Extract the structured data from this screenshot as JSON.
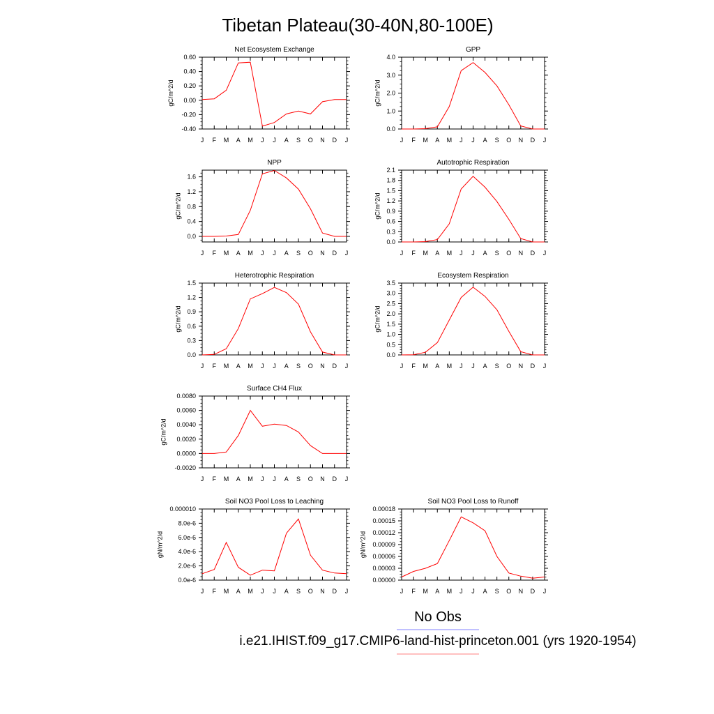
{
  "figure": {
    "title": "Tibetan Plateau(30-40N,80-100E)",
    "legend": {
      "obs_label": "No Obs",
      "obs_color": "#8080ff",
      "model_label": "i.e21.IHIST.f09_g17.CMIP6-land-hist-princeton.001 (yrs 1920-1954)",
      "model_color": "#ff8080"
    }
  },
  "chart_data": [
    {
      "type": "line",
      "title": "Net Ecosystem Exchange",
      "ylabel": "gC/m^2/d",
      "categories": [
        "J",
        "F",
        "M",
        "A",
        "M",
        "J",
        "J",
        "A",
        "S",
        "O",
        "N",
        "D",
        "J"
      ],
      "ylim": [
        -0.4,
        0.6
      ],
      "yticks": [
        -0.4,
        -0.2,
        0.0,
        0.2,
        0.4,
        0.6
      ],
      "ytick_labels": [
        "-0.40",
        "-0.20",
        "0.00",
        "0.20",
        "0.40",
        "0.60"
      ],
      "series": [
        {
          "color": "#ff0000",
          "values": [
            0.01,
            0.02,
            0.14,
            0.52,
            0.53,
            -0.36,
            -0.31,
            -0.19,
            -0.15,
            -0.19,
            -0.02,
            0.01,
            0.01
          ]
        }
      ]
    },
    {
      "type": "line",
      "title": "GPP",
      "ylabel": "gC/m^2/d",
      "categories": [
        "J",
        "F",
        "M",
        "A",
        "M",
        "J",
        "J",
        "A",
        "S",
        "O",
        "N",
        "D",
        "J"
      ],
      "ylim": [
        0,
        4.0
      ],
      "yticks": [
        0,
        1,
        2,
        3,
        4
      ],
      "ytick_labels": [
        "0.0",
        "1.0",
        "2.0",
        "3.0",
        "4.0"
      ],
      "series": [
        {
          "color": "#ff0000",
          "values": [
            0.0,
            0.0,
            0.02,
            0.12,
            1.25,
            3.25,
            3.7,
            3.15,
            2.4,
            1.35,
            0.17,
            0.0,
            0.0
          ]
        }
      ]
    },
    {
      "type": "line",
      "title": "NPP",
      "ylabel": "gC/m^2/d",
      "categories": [
        "J",
        "F",
        "M",
        "A",
        "M",
        "J",
        "J",
        "A",
        "S",
        "O",
        "N",
        "D",
        "J"
      ],
      "ylim": [
        -0.15,
        1.78
      ],
      "yticks": [
        0.0,
        0.4,
        0.8,
        1.2,
        1.6
      ],
      "ytick_labels": [
        "0.0",
        "0.4",
        "0.8",
        "1.2",
        "1.6"
      ],
      "series": [
        {
          "color": "#ff0000",
          "values": [
            0.0,
            0.0,
            0.01,
            0.05,
            0.7,
            1.68,
            1.77,
            1.57,
            1.27,
            0.74,
            0.09,
            0.0,
            0.0
          ]
        }
      ]
    },
    {
      "type": "line",
      "title": "Autotrophic Respiration",
      "ylabel": "gC/m^2/d",
      "categories": [
        "J",
        "F",
        "M",
        "A",
        "M",
        "J",
        "J",
        "A",
        "S",
        "O",
        "N",
        "D",
        "J"
      ],
      "ylim": [
        0,
        2.1
      ],
      "yticks": [
        0.0,
        0.3,
        0.6,
        0.9,
        1.2,
        1.5,
        1.8,
        2.1
      ],
      "ytick_labels": [
        "0.0",
        "0.3",
        "0.6",
        "0.9",
        "1.2",
        "1.5",
        "1.8",
        "2.1"
      ],
      "series": [
        {
          "color": "#ff0000",
          "values": [
            0.0,
            0.0,
            0.01,
            0.07,
            0.53,
            1.55,
            1.92,
            1.6,
            1.18,
            0.66,
            0.1,
            0.0,
            0.0
          ]
        }
      ]
    },
    {
      "type": "line",
      "title": "Heterotrophic Respiration",
      "ylabel": "gC/m^2/d",
      "categories": [
        "J",
        "F",
        "M",
        "A",
        "M",
        "J",
        "J",
        "A",
        "S",
        "O",
        "N",
        "D",
        "J"
      ],
      "ylim": [
        0,
        1.5
      ],
      "yticks": [
        0.0,
        0.3,
        0.6,
        0.9,
        1.2,
        1.5
      ],
      "ytick_labels": [
        "0.0",
        "0.3",
        "0.6",
        "0.9",
        "1.2",
        "1.5"
      ],
      "series": [
        {
          "color": "#ff0000",
          "values": [
            0.0,
            0.01,
            0.13,
            0.55,
            1.17,
            1.28,
            1.41,
            1.3,
            1.06,
            0.48,
            0.06,
            0.0,
            0.0
          ]
        }
      ]
    },
    {
      "type": "line",
      "title": "Ecosystem Respiration",
      "ylabel": "gC/m^2/d",
      "categories": [
        "J",
        "F",
        "M",
        "A",
        "M",
        "J",
        "J",
        "A",
        "S",
        "O",
        "N",
        "D",
        "J"
      ],
      "ylim": [
        0,
        3.5
      ],
      "yticks": [
        0.0,
        0.5,
        1.0,
        1.5,
        2.0,
        2.5,
        3.0,
        3.5
      ],
      "ytick_labels": [
        "0.0",
        "0.5",
        "1.0",
        "1.5",
        "2.0",
        "2.5",
        "3.0",
        "3.5"
      ],
      "series": [
        {
          "color": "#ff0000",
          "values": [
            0.0,
            0.01,
            0.13,
            0.6,
            1.7,
            2.8,
            3.3,
            2.85,
            2.2,
            1.15,
            0.16,
            0.0,
            0.0
          ]
        }
      ]
    },
    {
      "type": "line",
      "title": "Surface CH4 Flux",
      "ylabel": "gC/m^2/d",
      "categories": [
        "J",
        "F",
        "M",
        "A",
        "M",
        "J",
        "J",
        "A",
        "S",
        "O",
        "N",
        "D",
        "J"
      ],
      "ylim": [
        -0.002,
        0.008
      ],
      "yticks": [
        -0.002,
        0.0,
        0.002,
        0.004,
        0.006,
        0.008
      ],
      "ytick_labels": [
        "-0.0020",
        "0.0000",
        "0.0020",
        "0.0040",
        "0.0060",
        "0.0080"
      ],
      "series": [
        {
          "color": "#ff0000",
          "values": [
            0.0,
            0.0,
            0.0002,
            0.0025,
            0.006,
            0.0038,
            0.0041,
            0.0039,
            0.003,
            0.0011,
            0.0,
            0.0,
            0.0
          ]
        }
      ]
    },
    {
      "type": "line",
      "title": "Soil NO3 Pool Loss to Leaching",
      "ylabel": "gN/m^2/d",
      "categories": [
        "J",
        "F",
        "M",
        "A",
        "M",
        "J",
        "J",
        "A",
        "S",
        "O",
        "N",
        "D",
        "J"
      ],
      "ylim": [
        0,
        1e-05
      ],
      "yticks": [
        0,
        2e-06,
        4e-06,
        6e-06,
        8e-06,
        1e-05
      ],
      "ytick_labels": [
        "0.0e-6",
        "2.0e-6",
        "4.0e-6",
        "6.0e-6",
        "8.0e-6",
        "0.000010"
      ],
      "series": [
        {
          "color": "#ff0000",
          "values": [
            9e-07,
            1.5e-06,
            5.3e-06,
            1.8e-06,
            7e-07,
            1.4e-06,
            1.3e-06,
            6.6e-06,
            8.6e-06,
            3.5e-06,
            1.4e-06,
            1e-06,
            9e-07
          ]
        }
      ]
    },
    {
      "type": "line",
      "title": "Soil NO3 Pool Loss to Runoff",
      "ylabel": "gN/m^2/d",
      "categories": [
        "J",
        "F",
        "M",
        "A",
        "M",
        "J",
        "J",
        "A",
        "S",
        "O",
        "N",
        "D",
        "J"
      ],
      "ylim": [
        0,
        0.00018
      ],
      "yticks": [
        0,
        3e-05,
        6e-05,
        9e-05,
        0.00012,
        0.00015,
        0.00018
      ],
      "ytick_labels": [
        "0.00000",
        "0.00003",
        "0.00006",
        "0.00009",
        "0.00012",
        "0.00015",
        "0.00018"
      ],
      "series": [
        {
          "color": "#ff0000",
          "values": [
            8e-06,
            2.2e-05,
            3e-05,
            4.2e-05,
            0.0001,
            0.00016,
            0.000145,
            0.000125,
            6e-05,
            1.8e-05,
            1e-05,
            5e-06,
            8e-06
          ]
        }
      ]
    }
  ]
}
